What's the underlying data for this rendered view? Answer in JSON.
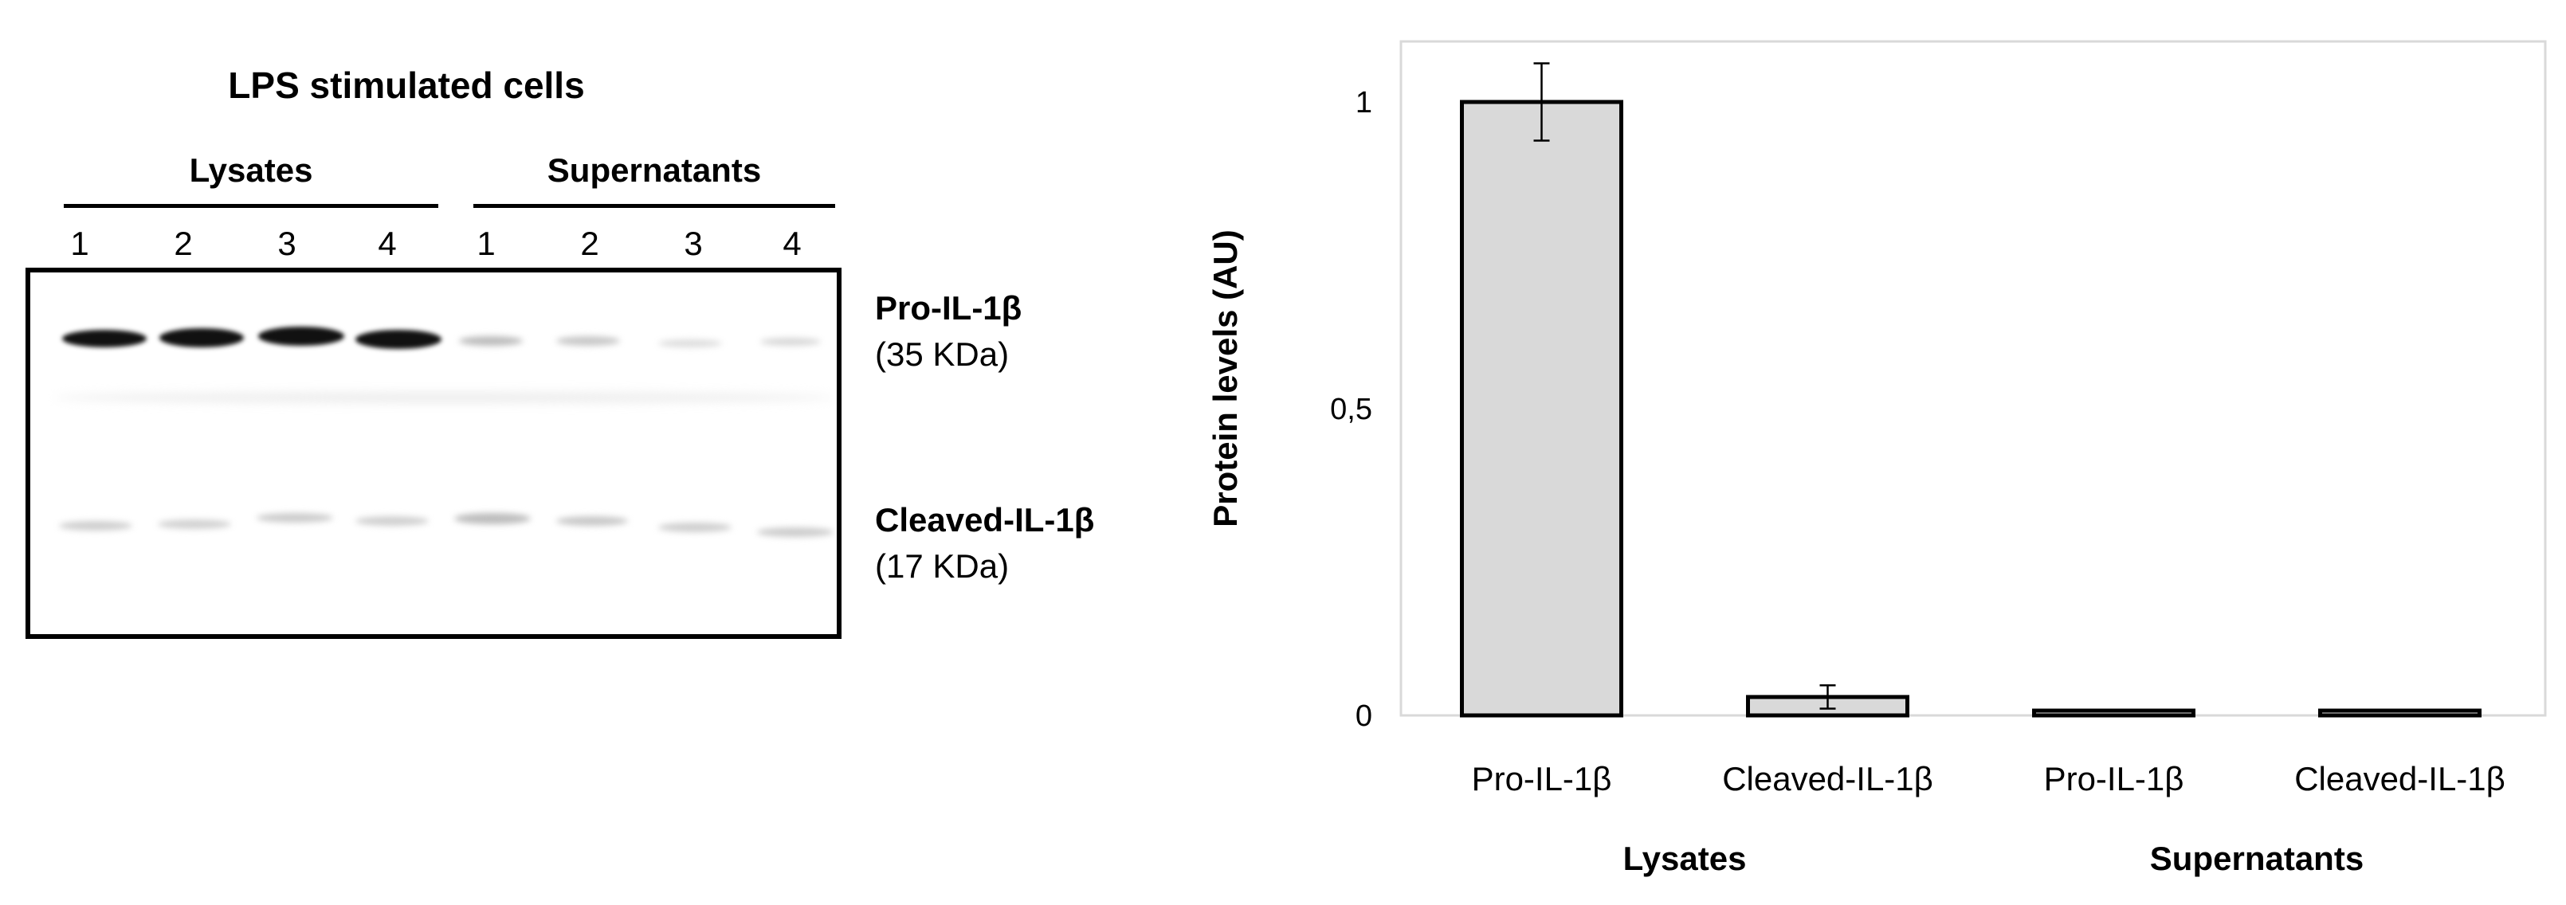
{
  "blot": {
    "title": "LPS stimulated cells",
    "groups": [
      {
        "label": "Lysates",
        "lanes": [
          "1",
          "2",
          "3",
          "4"
        ]
      },
      {
        "label": "Supernatants",
        "lanes": [
          "1",
          "2",
          "3",
          "4"
        ]
      }
    ],
    "bands": [
      {
        "name": "Pro-IL-1β",
        "size": "(35 KDa)"
      },
      {
        "name": "Cleaved-IL-1β",
        "size": "(17 KDa)"
      }
    ]
  },
  "chart_data": {
    "type": "bar",
    "categories": [
      "Pro-IL-1β",
      "Cleaved-IL-1β",
      "Pro-IL-1β",
      "Cleaved-IL-1β"
    ],
    "groups": [
      {
        "label": "Lysates",
        "categories": [
          0,
          1
        ]
      },
      {
        "label": "Supernatants",
        "categories": [
          2,
          3
        ]
      }
    ],
    "values": [
      1.0,
      0.03,
      0.004,
      0.006
    ],
    "errors": [
      0.063,
      0.019,
      0,
      0
    ],
    "title": "",
    "xlabel": "",
    "ylabel": "Protein levels (AU)",
    "ylim": [
      0,
      1.1
    ],
    "yticks": [
      0,
      0.5,
      1
    ],
    "ytick_labels": [
      "0",
      "0,5",
      "1"
    ],
    "grid": false,
    "bar_fill": "#d9d9d9",
    "bar_edge": "#000000"
  }
}
